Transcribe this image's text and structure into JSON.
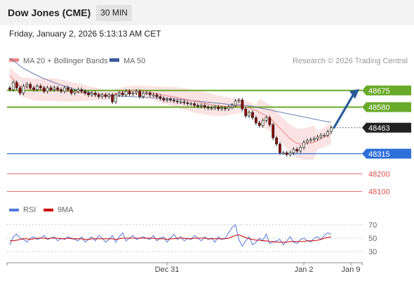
{
  "header": {
    "title": "Dow Jones (CME)",
    "timeframe": "30 MIN",
    "datetime": "Friday, January 2, 2026 5:13:13 AM CET"
  },
  "colors": {
    "ma20": "#f08a8a",
    "ma50": "#3a5a9c",
    "bollinger_fill": "#fbe3e3",
    "resistance": "#6aaa2a",
    "support": "#2f6fd9",
    "support_minor": "#e05050",
    "last_price": "#222222",
    "rsi": "#5577dd",
    "rsi_ma": "#cc0000",
    "candle_up": "#e8f0e0",
    "candle_down": "#8b0000",
    "arrow": "#2a5a9a"
  },
  "chart_data": [
    {
      "type": "candlestick",
      "title": "Dow Jones (CME)",
      "timeframe": "30 MIN",
      "legend": [
        {
          "name": "MA 20 + Bollinger Bands",
          "color": "#f08a8a"
        },
        {
          "name": "MA 50",
          "color": "#3a5a9c"
        }
      ],
      "credit": "Research © 2026 Trading Central",
      "ylim": [
        48050,
        48810
      ],
      "x_ticks": [
        "Dec 31",
        "Jan 2",
        "Jan 9"
      ],
      "levels": [
        {
          "value": 48675,
          "label": "48675",
          "kind": "resistance",
          "color": "#6aaa2a"
        },
        {
          "value": 48580,
          "label": "48580",
          "kind": "resistance",
          "color": "#6aaa2a"
        },
        {
          "value": 48463,
          "label": "48463",
          "kind": "last",
          "color": "#222222"
        },
        {
          "value": 48315,
          "label": "48315",
          "kind": "support",
          "color": "#2f6fd9"
        },
        {
          "value": 48200,
          "label": "48200",
          "kind": "support",
          "color": "#e05050"
        },
        {
          "value": 48100,
          "label": "48100",
          "kind": "support",
          "color": "#e05050"
        }
      ],
      "close": [
        48680,
        48720,
        48690,
        48660,
        48700,
        48710,
        48690,
        48680,
        48700,
        48690,
        48670,
        48690,
        48680,
        48690,
        48680,
        48670,
        48690,
        48680,
        48660,
        48670,
        48680,
        48670,
        48660,
        48650,
        48660,
        48650,
        48640,
        48650,
        48640,
        48650,
        48610,
        48650,
        48660,
        48650,
        48670,
        48655,
        48660,
        48670,
        48640,
        48660,
        48660,
        48650,
        48650,
        48640,
        48630,
        48620,
        48625,
        48620,
        48615,
        48610,
        48610,
        48605,
        48600,
        48600,
        48590,
        48585,
        48590,
        48580,
        48575,
        48575,
        48580,
        48570,
        48575,
        48570,
        48580,
        48590,
        48615,
        48620,
        48570,
        48530,
        48550,
        48520,
        48490,
        48475,
        48505,
        48520,
        48480,
        48405,
        48370,
        48320,
        48320,
        48310,
        48320,
        48340,
        48330,
        48350,
        48380,
        48390,
        48395,
        48400,
        48410,
        48420,
        48420,
        48440,
        48463
      ],
      "ma20": [
        48760,
        48740,
        48720,
        48700,
        48690,
        48690,
        48685,
        48680,
        48680,
        48680,
        48680,
        48680,
        48680,
        48680,
        48678,
        48675,
        48672,
        48670,
        48668,
        48666,
        48665,
        48663,
        48660,
        48658,
        48656,
        48655,
        48653,
        48651,
        48650,
        48650,
        48648,
        48655,
        48662,
        48668,
        48672,
        48674,
        48675,
        48674,
        48672,
        48670,
        48667,
        48664,
        48660,
        48656,
        48652,
        48648,
        48645,
        48642,
        48638,
        48635,
        48630,
        48626,
        48622,
        48618,
        48614,
        48610,
        48606,
        48602,
        48598,
        48594,
        48590,
        48588,
        48586,
        48585,
        48585,
        48586,
        48588,
        48588,
        48585,
        48580,
        48575,
        48570,
        48560,
        48550,
        48540,
        48530,
        48520,
        48500,
        48480,
        48460,
        48440,
        48420,
        48400,
        48385,
        48375,
        48370,
        48370,
        48372,
        48375,
        48380,
        48390,
        48400,
        48410,
        48420,
        48430
      ],
      "ma50": [
        48860,
        48845,
        48830,
        48815,
        48800,
        48790,
        48780,
        48770,
        48760,
        48750,
        48742,
        48735,
        48728,
        48720,
        48713,
        48706,
        48700,
        48694,
        48688,
        48682,
        48677,
        48673,
        48669,
        48665,
        48661,
        48657,
        48654,
        48651,
        48648,
        48646,
        48645,
        48644,
        48643,
        48642,
        48641,
        48640,
        48639,
        48638,
        48637,
        48636,
        48635,
        48634,
        48633,
        48632,
        48631,
        48630,
        48629,
        48628,
        48627,
        48626,
        48624,
        48622,
        48620,
        48618,
        48616,
        48614,
        48612,
        48610,
        48608,
        48606,
        48604,
        48602,
        48600,
        48598,
        48596,
        48595,
        48594,
        48593,
        48591,
        48589,
        48587,
        48584,
        48580,
        48576,
        48572,
        48568,
        48564,
        48560,
        48556,
        48552,
        48548,
        48544,
        48540,
        48536,
        48532,
        48528,
        48524,
        48520,
        48516,
        48512,
        48508,
        48504,
        48500,
        48497,
        48494
      ]
    },
    {
      "type": "line",
      "legend": [
        {
          "name": "RSI",
          "color": "#5577dd"
        },
        {
          "name": "9MA",
          "color": "#cc0000"
        }
      ],
      "ylim": [
        15,
        85
      ],
      "y_ticks": [
        70,
        50,
        30
      ],
      "series": [
        {
          "name": "RSI",
          "values": [
            40,
            52,
            56,
            50,
            48,
            44,
            50,
            52,
            48,
            50,
            54,
            48,
            50,
            52,
            46,
            50,
            48,
            52,
            50,
            48,
            46,
            52,
            44,
            48,
            52,
            46,
            54,
            50,
            44,
            48,
            54,
            44,
            52,
            58,
            46,
            50,
            54,
            48,
            50,
            52,
            50,
            48,
            54,
            46,
            50,
            52,
            44,
            50,
            56,
            48,
            52,
            46,
            50,
            48,
            54,
            50,
            46,
            52,
            48,
            50,
            44,
            52,
            48,
            50,
            58,
            66,
            70,
            48,
            38,
            46,
            52,
            40,
            44,
            50,
            46,
            56,
            42,
            44,
            46,
            48,
            40,
            46,
            52,
            44,
            42,
            48,
            50,
            46,
            44,
            50,
            52,
            48,
            54,
            58,
            56
          ]
        },
        {
          "name": "9MA",
          "values": [
            46,
            46,
            47,
            48,
            49,
            49,
            48,
            49,
            50,
            50,
            50,
            49,
            50,
            50,
            50,
            49,
            49,
            50,
            49,
            49,
            49,
            49,
            48,
            48,
            49,
            49,
            49,
            49,
            49,
            49,
            49,
            48,
            49,
            50,
            50,
            50,
            50,
            50,
            50,
            50,
            50,
            50,
            50,
            49,
            49,
            49,
            48,
            49,
            49,
            50,
            50,
            50,
            49,
            49,
            50,
            50,
            50,
            50,
            49,
            49,
            49,
            49,
            49,
            49,
            50,
            52,
            54,
            55,
            53,
            51,
            49,
            48,
            47,
            47,
            46,
            46,
            45,
            45,
            44,
            44,
            44,
            44,
            45,
            45,
            45,
            45,
            45,
            46,
            46,
            46,
            47,
            48,
            50,
            51,
            52
          ]
        }
      ]
    }
  ]
}
